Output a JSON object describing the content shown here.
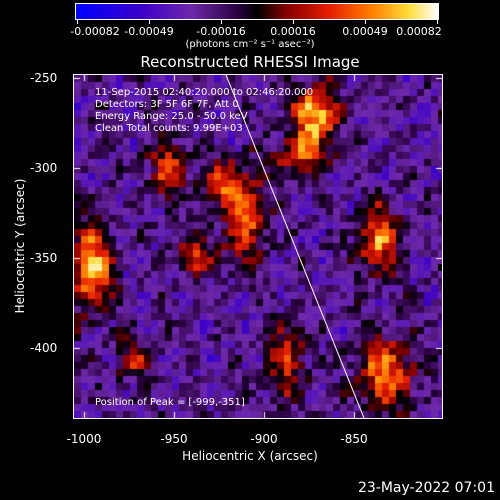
{
  "colorbar": {
    "tick_labels": [
      "-0.00082",
      "-0.00049",
      "-0.00016",
      "0.00016",
      "0.00049",
      "0.00082"
    ],
    "units": "(photons cm⁻² s⁻¹ asec⁻²)"
  },
  "title": "Reconstructed RHESSI Image",
  "info": {
    "time": "11-Sep-2015 02:40:20.000 to 02:46:20.000",
    "detectors": "Detectors: 3F 5F 6F 7F, Att 0",
    "energy": "Energy Range: 25.0 - 50.0 keV",
    "clean": "Clean     Total counts: 9.99E+03",
    "peak": "Position of Peak = [-999,-351]"
  },
  "axes": {
    "x_tick_labels": [
      "-1000",
      "-950",
      "-900",
      "-850"
    ],
    "y_tick_labels": [
      "-250",
      "-300",
      "-350",
      "-400"
    ],
    "xlabel": "Heliocentric X (arcsec)",
    "ylabel": "Heliocentric Y (arcsec)"
  },
  "footer": {
    "date": "23-May-2022 07:01"
  },
  "colors": {
    "background": "#000000",
    "text": "#ffffff",
    "limb_line": "#ffffff"
  }
}
